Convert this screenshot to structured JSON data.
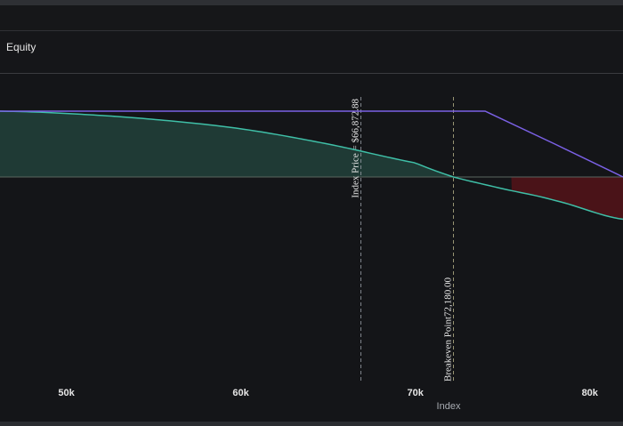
{
  "panel": {
    "title": "Equity"
  },
  "chart_data": {
    "type": "line",
    "xlabel": "Index",
    "ylabel": "",
    "xlim": [
      46200,
      81900
    ],
    "ylim": [
      -1,
      1
    ],
    "x_ticks": [
      {
        "value": 50000,
        "label": "50k"
      },
      {
        "value": 60000,
        "label": "60k"
      },
      {
        "value": 70000,
        "label": "70k"
      },
      {
        "value": 80000,
        "label": "80k"
      }
    ],
    "grid": false,
    "legend": "none",
    "zero_line": 0.0,
    "series": [
      {
        "color": "#7b61e6",
        "x": [
          46200,
          50000,
          55000,
          60000,
          65000,
          70000,
          74000,
          78000,
          81900
        ],
        "y": [
          0.56,
          0.56,
          0.56,
          0.56,
          0.56,
          0.56,
          0.56,
          0.28,
          0.0
        ]
      },
      {
        "color": "#3fbfa7",
        "x": [
          46200,
          50000,
          55000,
          60000,
          65000,
          70000,
          72180,
          75000,
          78000,
          81900
        ],
        "y": [
          0.56,
          0.54,
          0.49,
          0.41,
          0.28,
          0.12,
          0.0,
          -0.1,
          -0.2,
          -0.36
        ]
      }
    ],
    "annotations": [
      {
        "x": 66872.88,
        "label": "Index Price = $66,872.88",
        "style": "dashed",
        "color": "#9aa0a8"
      },
      {
        "x": 72180.0,
        "label": "Breakeven Point72,180.00",
        "style": "dashed",
        "color": "#b8b48a"
      }
    ],
    "fills": {
      "profit_color": "#1f3a35",
      "loss_color": "#4a1318"
    }
  }
}
